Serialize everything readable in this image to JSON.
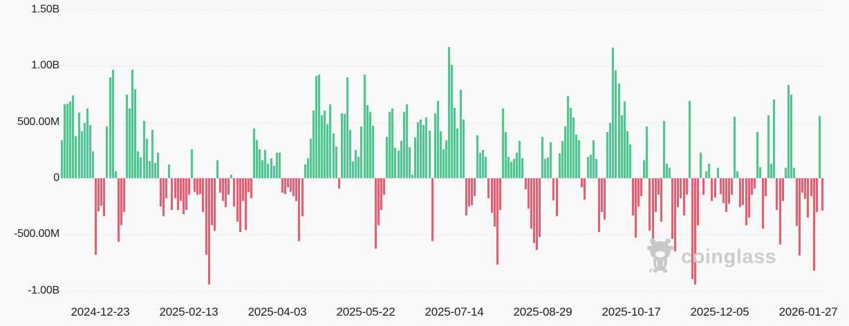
{
  "watermark": {
    "text": "coinglass",
    "icon": "coinglass-mascot-icon"
  },
  "colors": {
    "positive_bar": "#46CB8D",
    "negative_bar": "#F2596C",
    "grid": "#e7e7e7",
    "axis_text": "#1e1e1e",
    "background": "#f9f9f9",
    "watermark": "#cdcdcd"
  },
  "chart_data": {
    "type": "bar",
    "title": "",
    "unit": "USD",
    "value_suffix_positive": "B/M scale",
    "grid": "on",
    "legend": "none",
    "y_axis": {
      "tick_labels": [
        "1.50B",
        "1.00B",
        "500.00M",
        "0",
        "-500.00M",
        "-1.00B"
      ],
      "tick_values_M": [
        1500,
        1000,
        500,
        0,
        -500,
        -1000
      ],
      "range_M": [
        -1100,
        1550
      ]
    },
    "x_axis": {
      "tick_labels": [
        "2024-12-23",
        "2025-02-13",
        "2025-04-03",
        "2025-05-22",
        "2025-07-14",
        "2025-08-29",
        "2025-10-17",
        "2025-12-05",
        "2026-01-27"
      ]
    },
    "values_M": [
      340,
      660,
      665,
      680,
      735,
      375,
      585,
      420,
      490,
      620,
      475,
      240,
      -680,
      -295,
      -245,
      -340,
      460,
      900,
      965,
      60,
      -565,
      -420,
      -300,
      745,
      620,
      965,
      793,
      240,
      185,
      510,
      350,
      155,
      430,
      135,
      230,
      -250,
      -340,
      -180,
      120,
      -280,
      -180,
      -280,
      -200,
      -320,
      -280,
      -150,
      260,
      -120,
      -150,
      -140,
      -300,
      -680,
      -950,
      -420,
      -470,
      160,
      -130,
      -200,
      -260,
      -150,
      30,
      -250,
      -390,
      -480,
      -200,
      -460,
      -120,
      -180,
      440,
      340,
      260,
      160,
      250,
      130,
      180,
      110,
      230,
      230,
      -130,
      -140,
      -80,
      -120,
      -160,
      -200,
      -560,
      -340,
      120,
      180,
      350,
      600,
      910,
      920,
      560,
      600,
      480,
      660,
      400,
      280,
      -90,
      580,
      575,
      900,
      430,
      150,
      250,
      190,
      460,
      920,
      650,
      590,
      470,
      -625,
      -420,
      -285,
      -150,
      370,
      590,
      620,
      270,
      245,
      330,
      590,
      660,
      275,
      30,
      360,
      500,
      525,
      475,
      540,
      425,
      -560,
      580,
      690,
      420,
      260,
      340,
      1170,
      1010,
      630,
      445,
      790,
      520,
      -330,
      -250,
      -240,
      -160,
      380,
      230,
      250,
      190,
      -180,
      -310,
      -430,
      -770,
      -280,
      620,
      410,
      190,
      150,
      175,
      230,
      330,
      180,
      -100,
      -270,
      -450,
      -580,
      -640,
      -520,
      370,
      175,
      185,
      320,
      -195,
      -340,
      220,
      330,
      460,
      730,
      630,
      540,
      390,
      340,
      -80,
      -190,
      190,
      210,
      340,
      175,
      -480,
      -300,
      -370,
      413,
      495,
      1160,
      960,
      845,
      560,
      680,
      420,
      300,
      -330,
      -530,
      -250,
      -160,
      160,
      460,
      -470,
      -620,
      -300,
      -150,
      -390,
      510,
      130,
      90,
      -540,
      -650,
      -260,
      -180,
      -330,
      -150,
      690,
      -900,
      -950,
      -420,
      230,
      -150,
      60,
      130,
      -200,
      -170,
      90,
      -140,
      -220,
      -300,
      -230,
      -150,
      550,
      60,
      -260,
      -240,
      -420,
      -350,
      -150,
      -90,
      410,
      100,
      -450,
      -160,
      560,
      130,
      700,
      -280,
      -590,
      -200,
      95,
      830,
      745,
      90,
      -425,
      -690,
      -130,
      -185,
      -350,
      -160,
      -825,
      -300,
      553,
      -290
    ]
  }
}
